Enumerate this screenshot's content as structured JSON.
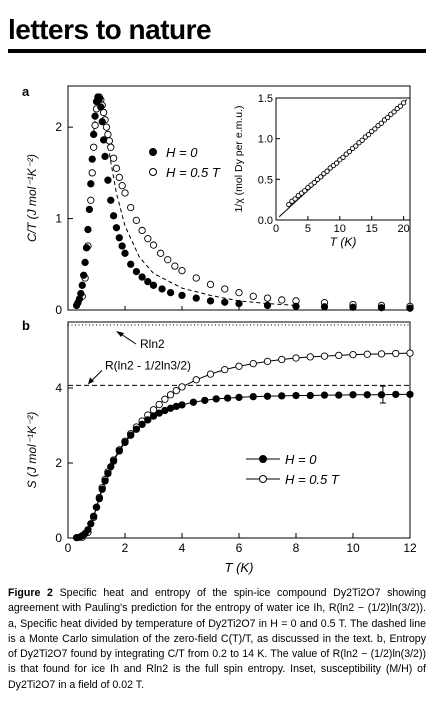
{
  "header": {
    "title": "letters to nature"
  },
  "figure": {
    "panel_a_label": "a",
    "panel_b_label": "b",
    "caption": {
      "label": "Figure 2",
      "text": "Specific heat and entropy of the spin-ice compound Dy2Ti2O7 showing agreement with Pauling's prediction for the entropy of water ice Ih, R(ln2 − (1/2)ln(3/2)). a, Specific heat divided by temperature of Dy2Ti2O7 in H = 0 and 0.5 T. The dashed line is a Monte Carlo simulation of the zero-field C(T)/T, as discussed in the text. b, Entropy of Dy2Ti2O7 found by integrating C/T from 0.2 to 14 K. The value of R(ln2 − (1/2)ln(3/2)) is that found for ice Ih and Rln2 is the full spin entropy. Inset, susceptibility (M/H) of Dy2Ti2O7 in a field of 0.02 T."
    }
  },
  "chart_data": [
    {
      "type": "scatter",
      "panel": "a",
      "xlabel": "",
      "ylabel": "C/T (J mol⁻¹K⁻²)",
      "xlim": [
        0,
        12
      ],
      "ylim": [
        0,
        2.45
      ],
      "yticks": [
        0,
        1,
        2
      ],
      "legend_position": "center",
      "series": [
        {
          "name": "H = 0",
          "marker": "filled-circle",
          "x": [
            0.3,
            0.35,
            0.4,
            0.45,
            0.5,
            0.55,
            0.6,
            0.65,
            0.7,
            0.75,
            0.8,
            0.85,
            0.9,
            0.95,
            1.0,
            1.05,
            1.1,
            1.15,
            1.2,
            1.25,
            1.3,
            1.4,
            1.5,
            1.6,
            1.7,
            1.8,
            1.9,
            2.0,
            2.2,
            2.4,
            2.6,
            2.8,
            3.0,
            3.3,
            3.6,
            4.0,
            4.5,
            5.0,
            5.5,
            6.0,
            7.0,
            8.0,
            9.0,
            10.0,
            11.0,
            12.0
          ],
          "y": [
            0.05,
            0.08,
            0.12,
            0.18,
            0.27,
            0.38,
            0.52,
            0.68,
            0.88,
            1.1,
            1.38,
            1.65,
            1.92,
            2.12,
            2.28,
            2.33,
            2.31,
            2.22,
            2.06,
            1.86,
            1.68,
            1.42,
            1.2,
            1.03,
            0.9,
            0.79,
            0.7,
            0.62,
            0.5,
            0.42,
            0.36,
            0.31,
            0.27,
            0.23,
            0.19,
            0.16,
            0.13,
            0.1,
            0.085,
            0.07,
            0.05,
            0.04,
            0.035,
            0.03,
            0.025,
            0.02
          ]
        },
        {
          "name": "H = 0.5 T",
          "marker": "open-circle",
          "x": [
            0.5,
            0.6,
            0.7,
            0.8,
            0.85,
            0.9,
            0.95,
            1.0,
            1.05,
            1.1,
            1.15,
            1.2,
            1.25,
            1.3,
            1.35,
            1.4,
            1.45,
            1.5,
            1.6,
            1.7,
            1.8,
            1.9,
            2.0,
            2.2,
            2.4,
            2.6,
            2.8,
            3.0,
            3.25,
            3.5,
            3.75,
            4.0,
            4.5,
            5.0,
            5.5,
            6.0,
            6.5,
            7.0,
            7.5,
            8.0,
            9.0,
            10.0,
            11.0,
            12.0
          ],
          "y": [
            0.15,
            0.35,
            0.7,
            1.2,
            1.5,
            1.78,
            2.02,
            2.2,
            2.3,
            2.33,
            2.3,
            2.24,
            2.16,
            2.08,
            2.0,
            1.92,
            1.85,
            1.78,
            1.66,
            1.55,
            1.45,
            1.36,
            1.28,
            1.12,
            0.98,
            0.87,
            0.78,
            0.71,
            0.62,
            0.55,
            0.48,
            0.43,
            0.35,
            0.28,
            0.23,
            0.19,
            0.15,
            0.13,
            0.11,
            0.1,
            0.08,
            0.06,
            0.05,
            0.04
          ]
        },
        {
          "name": "",
          "style": "dashed",
          "x": [
            0.9,
            1.0,
            1.1,
            1.2,
            1.3,
            1.5,
            1.7,
            2.0,
            2.5,
            3.0,
            4.0,
            5.0,
            6.0,
            7.0,
            8.0
          ],
          "y": [
            1.95,
            2.2,
            2.28,
            2.2,
            2.0,
            1.62,
            1.28,
            0.92,
            0.58,
            0.4,
            0.24,
            0.16,
            0.1,
            0.07,
            0.05
          ]
        }
      ]
    },
    {
      "type": "scatter",
      "panel": "inset",
      "xlabel": "T (K)",
      "ylabel": "1/χ (mol Dy per e.m.u.)",
      "xlim": [
        0,
        21
      ],
      "ylim": [
        0,
        1.5
      ],
      "xticks": [
        0,
        5,
        10,
        15,
        20
      ],
      "yticks": [
        0.0,
        0.5,
        1.0,
        1.5
      ],
      "series": [
        {
          "name": "",
          "marker": "open-circle",
          "x": [
            2,
            2.5,
            3,
            3.5,
            4,
            4.5,
            5,
            5.5,
            6,
            6.5,
            7,
            7.5,
            8,
            8.5,
            9,
            9.5,
            10,
            10.5,
            11,
            11.5,
            12,
            12.5,
            13,
            13.5,
            14,
            14.5,
            15,
            15.5,
            16,
            16.5,
            17,
            17.5,
            18,
            18.5,
            19,
            19.5,
            20
          ],
          "y": [
            0.19,
            0.23,
            0.26,
            0.3,
            0.33,
            0.36,
            0.4,
            0.43,
            0.46,
            0.5,
            0.53,
            0.57,
            0.6,
            0.64,
            0.67,
            0.7,
            0.74,
            0.77,
            0.81,
            0.84,
            0.88,
            0.91,
            0.95,
            0.98,
            1.02,
            1.05,
            1.09,
            1.12,
            1.16,
            1.19,
            1.23,
            1.26,
            1.3,
            1.33,
            1.37,
            1.4,
            1.44
          ]
        },
        {
          "name": "",
          "style": "line",
          "x": [
            0.5,
            20.5
          ],
          "y": [
            0.04,
            1.48
          ]
        }
      ]
    },
    {
      "type": "line",
      "panel": "b",
      "xlabel": "T (K)",
      "ylabel": "S (J mol⁻¹K⁻²)",
      "xlim": [
        0,
        12
      ],
      "ylim": [
        0,
        5.76
      ],
      "xticks": [
        0,
        2,
        4,
        6,
        8,
        10,
        12
      ],
      "yticks": [
        0,
        2,
        4
      ],
      "legend_position": "center-right",
      "reference_lines": [
        {
          "label": "Rln2",
          "y": 5.76,
          "style": "dotted"
        },
        {
          "label": "R(ln2 - 1/2ln3/2)",
          "y": 4.07,
          "style": "dashed"
        }
      ],
      "series": [
        {
          "name": "H = 0",
          "marker": "filled-circle",
          "x": [
            0.3,
            0.4,
            0.5,
            0.6,
            0.7,
            0.8,
            0.9,
            1.0,
            1.1,
            1.2,
            1.3,
            1.4,
            1.5,
            1.6,
            1.8,
            2.0,
            2.2,
            2.4,
            2.6,
            2.8,
            3.0,
            3.2,
            3.4,
            3.6,
            3.8,
            4.0,
            4.4,
            4.8,
            5.2,
            5.6,
            6.0,
            6.5,
            7.0,
            7.5,
            8.0,
            8.5,
            9.0,
            9.5,
            10.0,
            10.5,
            11.0,
            11.5,
            12.0
          ],
          "y": [
            0.01,
            0.02,
            0.06,
            0.12,
            0.22,
            0.38,
            0.58,
            0.82,
            1.05,
            1.3,
            1.52,
            1.72,
            1.9,
            2.05,
            2.32,
            2.55,
            2.74,
            2.9,
            3.03,
            3.15,
            3.25,
            3.33,
            3.4,
            3.46,
            3.51,
            3.55,
            3.62,
            3.67,
            3.71,
            3.73,
            3.75,
            3.77,
            3.78,
            3.79,
            3.8,
            3.8,
            3.81,
            3.81,
            3.82,
            3.82,
            3.82,
            3.83,
            3.83
          ]
        },
        {
          "name": "H = 0.5 T",
          "marker": "open-circle",
          "x": [
            0.5,
            0.7,
            0.9,
            1.0,
            1.1,
            1.2,
            1.3,
            1.4,
            1.6,
            1.8,
            2.0,
            2.2,
            2.4,
            2.6,
            2.8,
            3.0,
            3.2,
            3.4,
            3.6,
            3.8,
            4.0,
            4.5,
            5.0,
            5.5,
            6.0,
            6.5,
            7.0,
            7.5,
            8.0,
            8.5,
            9.0,
            9.5,
            10.0,
            10.5,
            11.0,
            11.5,
            12.0
          ],
          "y": [
            0.02,
            0.15,
            0.55,
            0.82,
            1.08,
            1.34,
            1.56,
            1.76,
            2.08,
            2.35,
            2.58,
            2.78,
            2.96,
            3.12,
            3.28,
            3.42,
            3.56,
            3.7,
            3.82,
            3.93,
            4.03,
            4.22,
            4.37,
            4.49,
            4.58,
            4.65,
            4.71,
            4.76,
            4.8,
            4.83,
            4.85,
            4.87,
            4.89,
            4.9,
            4.91,
            4.92,
            4.93
          ]
        }
      ]
    }
  ]
}
